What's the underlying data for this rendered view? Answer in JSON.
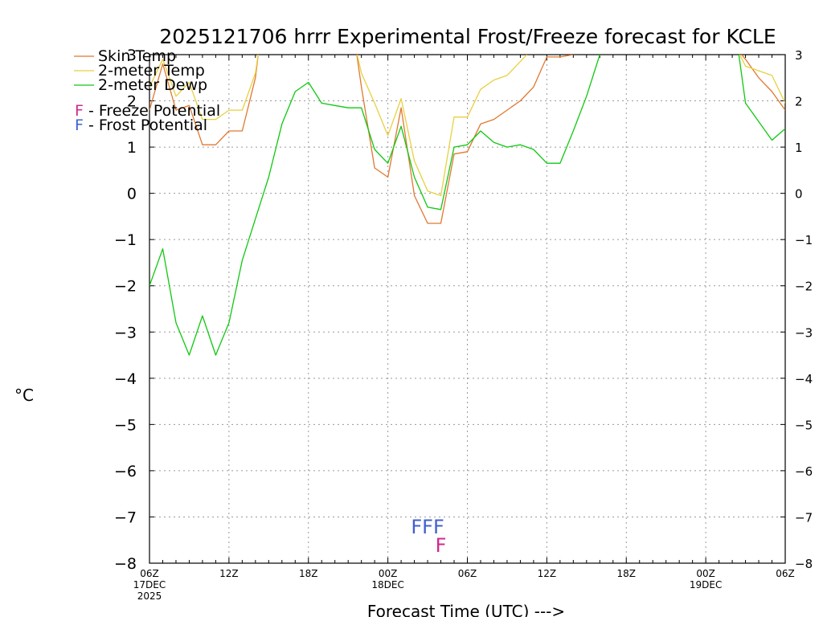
{
  "chart_data": {
    "type": "line",
    "title": "2025121706 hrrr Experimental Frost/Freeze forecast for KCLE",
    "xlabel": "Forecast Time (UTC) --->",
    "ylabel": "°C",
    "ylim": [
      -8,
      3
    ],
    "xlim": [
      0,
      48
    ],
    "grid": true,
    "yticks": [
      3,
      2,
      1,
      0,
      -1,
      -2,
      -3,
      -4,
      -5,
      -6,
      -7,
      -8
    ],
    "ytick_labels": [
      "3",
      "2",
      "1",
      "0",
      "−1",
      "−2",
      "−3",
      "−4",
      "−5",
      "−6",
      "−7",
      "−8"
    ],
    "xticks": [
      {
        "x": 0,
        "label": "06Z",
        "sub1": "17DEC",
        "sub2": "2025"
      },
      {
        "x": 6,
        "label": "12Z"
      },
      {
        "x": 12,
        "label": "18Z"
      },
      {
        "x": 18,
        "label": "00Z",
        "sub1": "18DEC"
      },
      {
        "x": 24,
        "label": "06Z"
      },
      {
        "x": 30,
        "label": "12Z"
      },
      {
        "x": 36,
        "label": "18Z"
      },
      {
        "x": 42,
        "label": "00Z",
        "sub1": "19DEC"
      },
      {
        "x": 48,
        "label": "06Z"
      }
    ],
    "legend": [
      {
        "label": "Skin Temp",
        "color": "#e07830"
      },
      {
        "label": "2-meter Temp",
        "color": "#e8d040"
      },
      {
        "label": "2-meter Dewp",
        "color": "#10c810"
      }
    ],
    "potential_legend": [
      {
        "letter": "F",
        "text": " - Freeze Potential",
        "color": "#d02890"
      },
      {
        "letter": "F",
        "text": " - Frost Potential",
        "color": "#4060d0"
      }
    ],
    "series": [
      {
        "name": "Skin Temp",
        "color": "#e07830",
        "x": [
          0,
          1,
          2,
          3,
          4,
          5,
          6,
          7,
          8,
          8.25,
          15.6,
          16,
          17,
          18,
          19,
          20,
          21,
          22,
          23,
          24,
          25,
          26,
          27,
          28,
          29,
          30,
          31,
          32
        ],
        "y": [
          1.8,
          2.8,
          1.8,
          1.9,
          1.05,
          1.05,
          1.35,
          1.35,
          2.5,
          3.1,
          3.1,
          2.3,
          0.55,
          0.35,
          1.85,
          -0.05,
          -0.65,
          -0.65,
          0.85,
          0.9,
          1.5,
          1.6,
          1.8,
          2.0,
          2.3,
          2.95,
          2.95,
          3.0
        ]
      },
      {
        "name": "2-meter Temp",
        "color": "#e8d040",
        "x": [
          0,
          1,
          2,
          3,
          4,
          5,
          6,
          7,
          8,
          8.25,
          15.6,
          16,
          17,
          18,
          19,
          20,
          21,
          22,
          23,
          24,
          25,
          26,
          27,
          28,
          28.5
        ],
        "y": [
          2.3,
          2.9,
          2.1,
          2.4,
          1.6,
          1.6,
          1.8,
          1.8,
          2.6,
          3.1,
          3.1,
          2.6,
          1.95,
          1.25,
          2.05,
          0.7,
          0.05,
          -0.05,
          1.65,
          1.65,
          2.25,
          2.45,
          2.55,
          2.85,
          3.0
        ]
      },
      {
        "name": "2-meter Dewp",
        "color": "#10c810",
        "x": [
          0,
          1,
          2,
          3,
          4,
          5,
          6,
          7,
          8,
          9,
          10,
          11,
          12,
          13,
          14,
          15,
          16,
          17,
          18,
          19,
          20,
          21,
          22,
          23,
          24,
          25,
          26,
          27,
          28,
          29,
          30,
          31,
          32,
          33,
          34
        ],
        "y": [
          -2.0,
          -1.2,
          -2.8,
          -3.5,
          -2.65,
          -3.5,
          -2.8,
          -1.45,
          -0.55,
          0.35,
          1.5,
          2.2,
          2.4,
          1.95,
          1.9,
          1.85,
          1.85,
          0.95,
          0.65,
          1.45,
          0.35,
          -0.3,
          -0.35,
          1.0,
          1.05,
          1.35,
          1.1,
          1.0,
          1.05,
          0.95,
          0.65,
          0.65,
          1.35,
          2.1,
          3.0
        ]
      }
    ],
    "tail_series": [
      {
        "name": "Skin Temp tail",
        "color": "#e07830",
        "x": [
          44.4,
          45,
          46,
          47,
          48
        ],
        "y": [
          3.1,
          2.9,
          2.5,
          2.2,
          1.8
        ]
      },
      {
        "name": "2-meter Temp tail",
        "color": "#e8d040",
        "x": [
          44.4,
          45,
          46,
          47,
          48
        ],
        "y": [
          3.1,
          2.75,
          2.65,
          2.55,
          1.95
        ]
      },
      {
        "name": "2-meter Dewp tail",
        "color": "#10c810",
        "x": [
          44.5,
          45,
          46,
          47,
          48
        ],
        "y": [
          3.0,
          1.95,
          1.55,
          1.15,
          1.4
        ]
      }
    ],
    "markers": [
      {
        "text": "FFF",
        "x": 21,
        "y": -7.2,
        "color": "#4060d0",
        "kind": "frost"
      },
      {
        "text": "F",
        "x": 22,
        "y": -7.6,
        "color": "#d02890",
        "kind": "freeze"
      }
    ]
  }
}
